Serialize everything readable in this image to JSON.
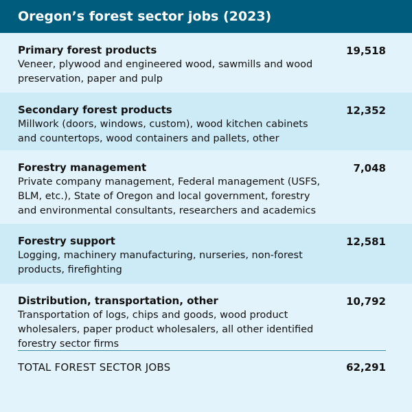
{
  "chart_data": {
    "type": "table",
    "title": "Oregon’s forest sector jobs (2023)",
    "rows": [
      {
        "name": "Primary forest products",
        "description": "Veneer, plywood and engineered wood, sawmills and wood preservation, paper and pulp",
        "value": "19,518"
      },
      {
        "name": "Secondary forest products",
        "description": "Millwork (doors, windows, custom), wood kitchen cabinets and countertops, wood containers and pallets, other",
        "value": "12,352"
      },
      {
        "name": "Forestry management",
        "description": "Private company management, Federal management (USFS, BLM, etc.), State of Oregon and local government, forestry and environmental consultants, researchers and academics",
        "value": "7,048"
      },
      {
        "name": "Forestry support",
        "description": "Logging, machinery manufacturing, nurseries, non-forest products, firefighting",
        "value": "12,581"
      },
      {
        "name": "Distribution, transportation, other",
        "description": "Transportation of logs, chips and goods, wood product wholesalers, paper product wholesalers, all other identified forestry sector firms",
        "value": "10,792"
      }
    ],
    "total": {
      "label": "TOTAL FOREST SECTOR JOBS",
      "value": "62,291"
    }
  },
  "colors": {
    "header_bg": "#005c7d",
    "row_light": "#e3f3fb",
    "row_alt": "#cdeaf7"
  }
}
